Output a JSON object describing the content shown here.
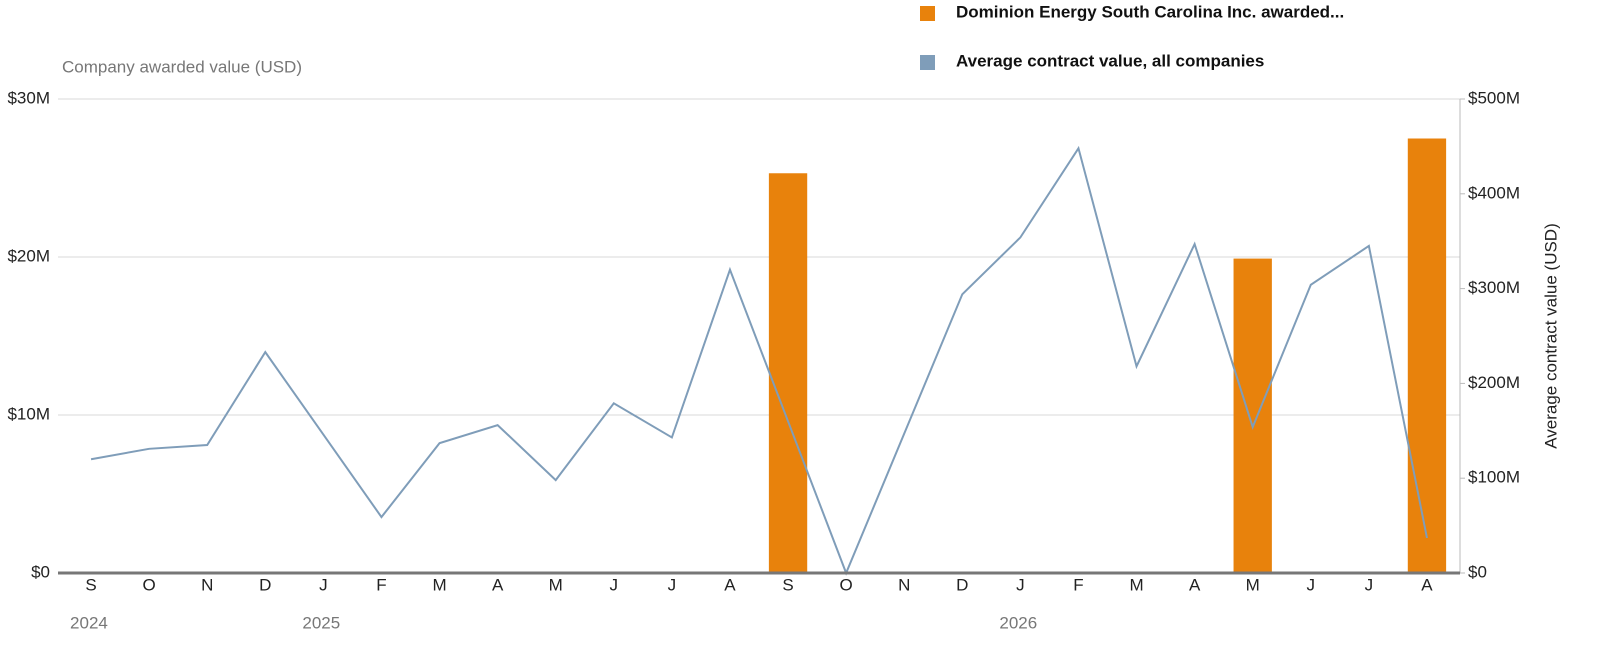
{
  "chart_data": {
    "type": "combo",
    "y_label": "Company awarded value (USD)",
    "y2_label": "Average contract value (USD)",
    "categories": [
      "S",
      "O",
      "N",
      "D",
      "J",
      "F",
      "M",
      "A",
      "M",
      "J",
      "J",
      "A",
      "S",
      "O",
      "N",
      "D",
      "J",
      "F",
      "M",
      "A",
      "M",
      "J",
      "J",
      "A"
    ],
    "year_labels": [
      "2024",
      null,
      null,
      null,
      "2025",
      null,
      null,
      null,
      null,
      null,
      null,
      null,
      null,
      null,
      null,
      null,
      "2026",
      null,
      null,
      null,
      null,
      null,
      null,
      null
    ],
    "series": [
      {
        "name": "Dominion Energy South Carolina Inc. awarded...",
        "type": "bar",
        "color": "#e8820c",
        "values": [
          null,
          null,
          null,
          null,
          null,
          null,
          null,
          null,
          null,
          null,
          null,
          null,
          25.3,
          null,
          null,
          null,
          null,
          null,
          null,
          null,
          19.9,
          null,
          null,
          27.5
        ]
      },
      {
        "name": "Average contract value, all companies",
        "type": "line",
        "axis": "y2",
        "color": "#7f9db9",
        "values": [
          120,
          131,
          135,
          233,
          146,
          59,
          137,
          156,
          98,
          179,
          143,
          320,
          160,
          0,
          147,
          294,
          354,
          448,
          218,
          347,
          154,
          304,
          345,
          37
        ]
      }
    ],
    "ylim": [
      0,
      30
    ],
    "yticks": [
      {
        "value": 0,
        "label": "$0"
      },
      {
        "value": 10,
        "label": "$10M"
      },
      {
        "value": 20,
        "label": "$20M"
      },
      {
        "value": 30,
        "label": "$30M"
      }
    ],
    "y2lim": [
      0,
      500
    ],
    "y2ticks": [
      {
        "value": 0,
        "label": "$0"
      },
      {
        "value": 100,
        "label": "$100M"
      },
      {
        "value": 200,
        "label": "$200M"
      },
      {
        "value": 300,
        "label": "$300M"
      },
      {
        "value": 400,
        "label": "$400M"
      },
      {
        "value": 500,
        "label": "$500M"
      }
    ],
    "grid": true
  }
}
